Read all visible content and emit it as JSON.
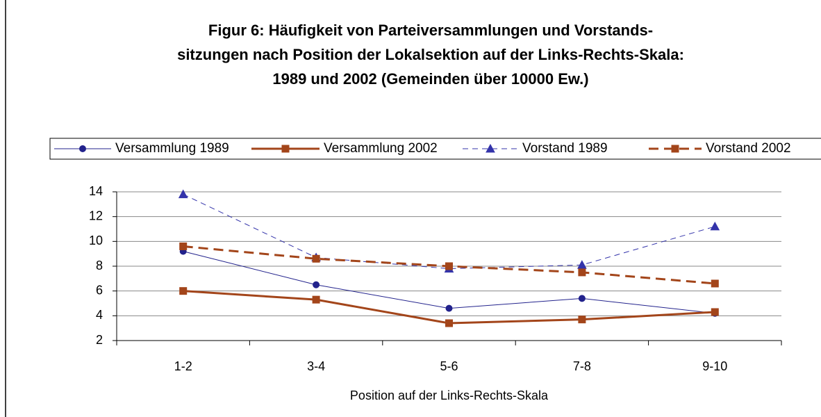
{
  "chart_data": {
    "type": "line",
    "title": [
      "Figur 6: Häufigkeit von Parteiversammlungen und Vorstands-",
      "sitzungen nach Position der Lokalsektion auf der Links-Rechts-Skala:",
      "1989 und 2002  (Gemeinden über 10000 Ew.)"
    ],
    "x_label": "Position auf der Links-Rechts-Skala",
    "categories": [
      "1-2",
      "3-4",
      "5-6",
      "7-8",
      "9-10"
    ],
    "series": [
      {
        "name": "Versammlung 1989",
        "color": "#22228c",
        "line_style": "solid",
        "line_width": 1,
        "marker": "circle",
        "values": [
          9.2,
          6.5,
          4.6,
          5.4,
          4.2
        ]
      },
      {
        "name": "Versammlung 2002",
        "color": "#a3451a",
        "line_style": "solid",
        "line_width": 3,
        "marker": "square",
        "values": [
          6.0,
          5.3,
          3.4,
          3.7,
          4.3
        ]
      },
      {
        "name": "Vorstand 1989",
        "color": "#3333aa",
        "line_style": "dashed",
        "line_width": 1,
        "marker": "triangle",
        "values": [
          13.8,
          8.7,
          7.8,
          8.1,
          11.2
        ]
      },
      {
        "name": "Vorstand 2002",
        "color": "#a3451a",
        "line_style": "dashed",
        "line_width": 3,
        "marker": "square",
        "values": [
          9.6,
          8.6,
          8.0,
          7.5,
          6.6
        ]
      }
    ],
    "ylim": [
      2,
      14
    ],
    "yticks": [
      2,
      4,
      6,
      8,
      10,
      12,
      14
    ],
    "grid": true,
    "legend": "top"
  }
}
